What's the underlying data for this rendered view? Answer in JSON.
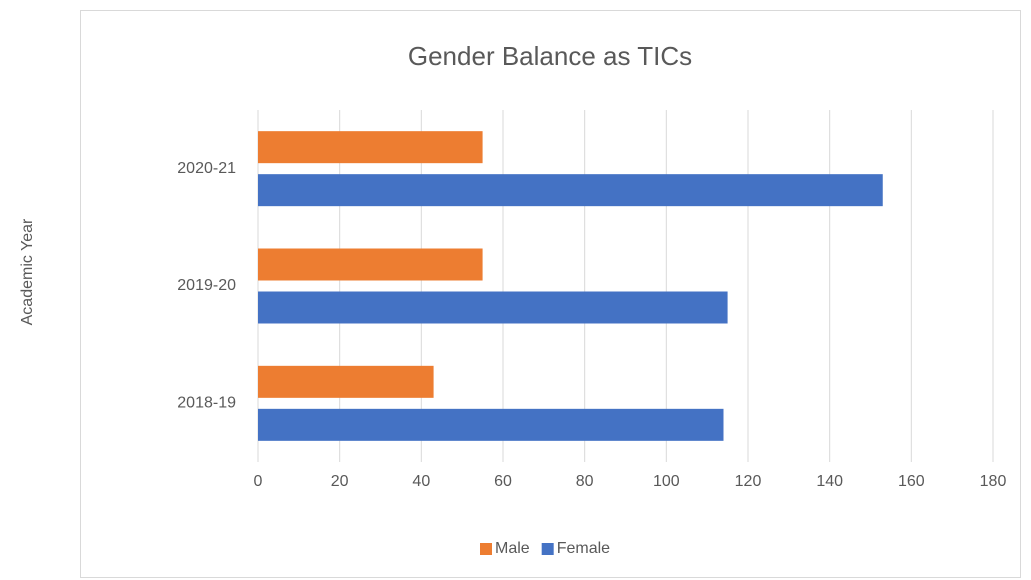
{
  "chart_data": {
    "type": "bar",
    "orientation": "horizontal",
    "title": "Gender Balance as TICs",
    "y_label": "Academic Year",
    "categories": [
      "2018-19",
      "2019-20",
      "2020-21"
    ],
    "series": [
      {
        "name": "Male",
        "color": "#ed7d31",
        "values": [
          43,
          55,
          55
        ]
      },
      {
        "name": "Female",
        "color": "#4472c4",
        "values": [
          114,
          115,
          153
        ]
      }
    ],
    "xlim": [
      0,
      180
    ],
    "xticks": [
      0,
      20,
      40,
      60,
      80,
      100,
      120,
      140,
      160,
      180
    ],
    "grid": true,
    "legend": "bottom"
  }
}
